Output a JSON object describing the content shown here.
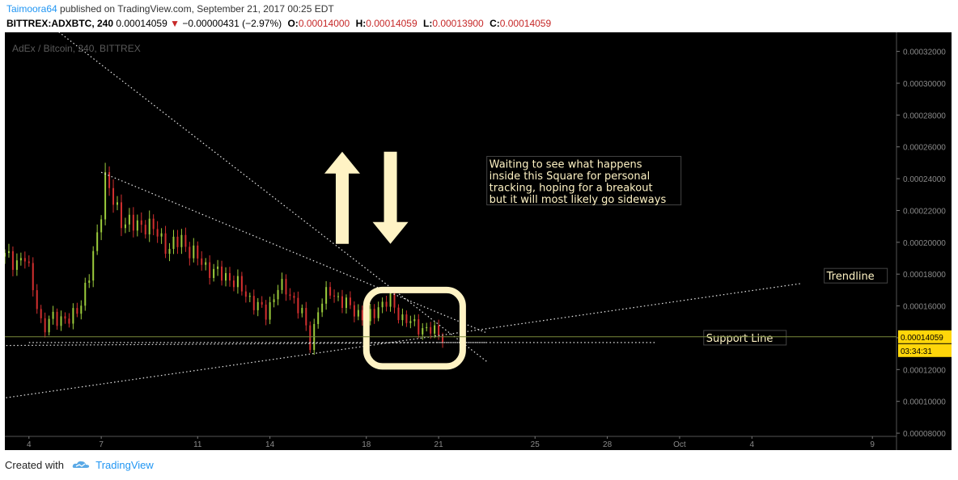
{
  "header": {
    "author": "Taimoora64",
    "published_text": " published on TradingView.com, September 21, 2017 00:25 EDT",
    "symbol": "BITTREX:ADXBTC, 240",
    "last": "0.00014059",
    "change": "−0.00000431 (−2.97%)",
    "open_label": "O:",
    "open": "0.00014000",
    "high_label": "H:",
    "high": "0.00014059",
    "low_label": "L:",
    "low": "0.00013900",
    "close_label": "C:",
    "close": "0.00014059"
  },
  "footer": {
    "created_with": "Created with",
    "brand": "TradingView"
  },
  "colors": {
    "background": "#000000",
    "up": "#9ccc3c",
    "down": "#d32f2f",
    "annotation": "#fff3c4",
    "price_label": "#ffd60a",
    "author_link": "#2196f3"
  },
  "chart_data": {
    "type": "candlestick",
    "title": "AdEx / Bitcoin, 240, BITTREX",
    "y_unit": "BTC",
    "ylim": [
      7.8e-05,
      0.000332
    ],
    "y_ticks": [
      "0.00008000",
      "0.00010000",
      "0.00012000",
      "0.00014000",
      "0.00016000",
      "0.00018000",
      "0.00020000",
      "0.00022000",
      "0.00024000",
      "0.00026000",
      "0.00028000",
      "0.00030000",
      "0.00032000"
    ],
    "x_range": [
      "2017-09-03",
      "2017-10-10"
    ],
    "x_ticks": [
      {
        "date": "2017-09-04",
        "label": "4"
      },
      {
        "date": "2017-09-07",
        "label": "7"
      },
      {
        "date": "2017-09-11",
        "label": "11"
      },
      {
        "date": "2017-09-14",
        "label": "14"
      },
      {
        "date": "2017-09-18",
        "label": "18"
      },
      {
        "date": "2017-09-21",
        "label": "21"
      },
      {
        "date": "2017-09-25",
        "label": "25"
      },
      {
        "date": "2017-09-28",
        "label": "28"
      },
      {
        "date": "2017-10-01",
        "label": "Oct"
      },
      {
        "date": "2017-10-04",
        "label": "4"
      },
      {
        "date": "2017-10-09",
        "label": "9"
      }
    ],
    "last_price": "0.00014059",
    "countdown": "03:34:31",
    "price_path": [
      [
        "2017-09-03T00:00",
        0.000191
      ],
      [
        "2017-09-03T12:00",
        0.000188
      ],
      [
        "2017-09-03T20:00",
        0.00019
      ],
      [
        "2017-09-04T06:00",
        0.000168
      ],
      [
        "2017-09-04T14:00",
        0.000143
      ],
      [
        "2017-09-05T00:00",
        0.000154
      ],
      [
        "2017-09-05T16:00",
        0.00015
      ],
      [
        "2017-09-06T04:00",
        0.000163
      ],
      [
        "2017-09-06T12:00",
        0.000178
      ],
      [
        "2017-09-06T20:00",
        0.000205
      ],
      [
        "2017-09-07T04:00",
        0.00024
      ],
      [
        "2017-09-07T12:00",
        0.000225
      ],
      [
        "2017-09-07T20:00",
        0.000215
      ],
      [
        "2017-09-08T08:00",
        0.00021
      ],
      [
        "2017-09-08T20:00",
        0.000212
      ],
      [
        "2017-09-09T08:00",
        0.000205
      ],
      [
        "2017-09-09T20:00",
        0.000196
      ],
      [
        "2017-09-10T08:00",
        0.000202
      ],
      [
        "2017-09-10T20:00",
        0.000192
      ],
      [
        "2017-09-11T08:00",
        0.000185
      ],
      [
        "2017-09-11T20:00",
        0.00018
      ],
      [
        "2017-09-12T08:00",
        0.000178
      ],
      [
        "2017-09-12T20:00",
        0.00017
      ],
      [
        "2017-09-13T08:00",
        0.000162
      ],
      [
        "2017-09-13T20:00",
        0.000155
      ],
      [
        "2017-09-14T08:00",
        0.000172
      ],
      [
        "2017-09-14T20:00",
        0.000168
      ],
      [
        "2017-09-15T08:00",
        0.000155
      ],
      [
        "2017-09-15T16:00",
        0.000136
      ],
      [
        "2017-09-16T00:00",
        0.000158
      ],
      [
        "2017-09-16T12:00",
        0.00017
      ],
      [
        "2017-09-17T00:00",
        0.000162
      ],
      [
        "2017-09-17T12:00",
        0.000158
      ],
      [
        "2017-09-18T00:00",
        0.00015
      ],
      [
        "2017-09-18T12:00",
        0.00016
      ],
      [
        "2017-09-19T00:00",
        0.000163
      ],
      [
        "2017-09-19T12:00",
        0.000152
      ],
      [
        "2017-09-20T00:00",
        0.000148
      ],
      [
        "2017-09-20T12:00",
        0.000145
      ],
      [
        "2017-09-21T00:00",
        0.000143
      ],
      [
        "2017-09-21T04:00",
        0.0001406
      ]
    ],
    "drawings": {
      "lines": [
        {
          "from": [
            "2017-09-04",
            "0.00013700"
          ],
          "to": [
            "2017-09-23",
            "0.00013700"
          ]
        },
        {
          "from": [
            "2017-09-02",
            "0.00013500"
          ],
          "to": [
            "2017-09-21",
            "0.00013700"
          ]
        },
        {
          "from": [
            "2017-09-07",
            "0.00024400"
          ],
          "to": [
            "2017-09-23",
            "0.00014300"
          ]
        },
        {
          "from": [
            "2017-09-05",
            "0.00033500"
          ],
          "to": [
            "2017-09-23",
            "0.00012500"
          ]
        },
        {
          "from": [
            "2017-09-02",
            "0.00010000"
          ],
          "to": [
            "2017-10-06",
            "0.00017400"
          ]
        },
        {
          "from": [
            "2017-09-21",
            "0.00013700"
          ],
          "to": [
            "2017-09-30",
            "0.00013700"
          ]
        }
      ],
      "square": {
        "from": [
          "2017-09-18",
          "0.00012200"
        ],
        "to": [
          "2017-09-22",
          "0.00017000"
        ]
      },
      "arrows": [
        {
          "direction": "up",
          "at": [
            "2017-09-17",
            "0.00022800"
          ]
        },
        {
          "direction": "down",
          "at": [
            "2017-09-19",
            "0.00022800"
          ]
        }
      ],
      "note": {
        "at": [
          "2017-09-23",
          "0.00025400"
        ],
        "lines": [
          "Waiting to see what happens",
          "inside this Square for personal",
          "tracking, hoping for a breakout",
          "but it will most likely go sideways"
        ]
      },
      "labels": [
        {
          "text": "Trendline",
          "at": [
            "2017-10-07",
            "0.00017900"
          ]
        },
        {
          "text": "Support Line",
          "at": [
            "2017-10-02",
            "0.00014000"
          ]
        }
      ]
    }
  }
}
